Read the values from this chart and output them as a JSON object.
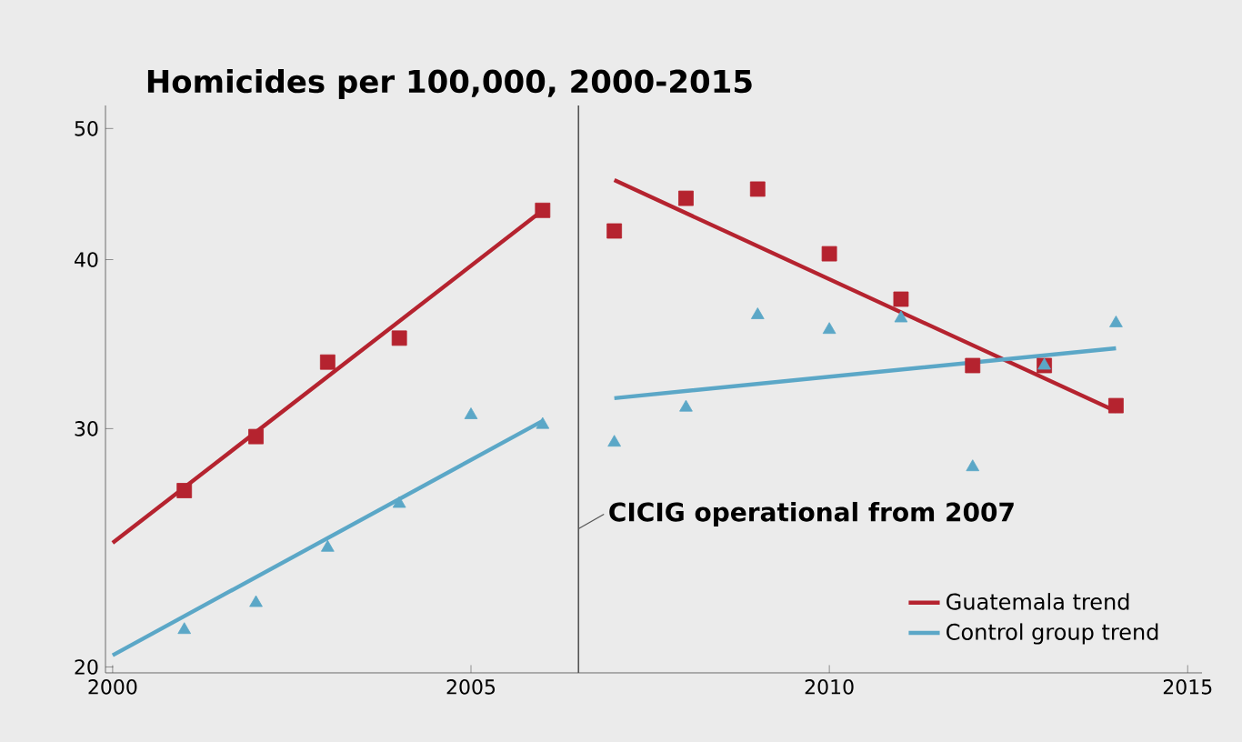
{
  "chart_data": {
    "type": "scatter",
    "title": "Homicides per 100,000, 2000-2015",
    "log": "y",
    "grid": false,
    "legend": "bottom right",
    "xlim": [
      1999.9,
      2015.2
    ],
    "ylim": [
      19.8,
      52
    ],
    "xticks": [
      2000,
      2005,
      2010,
      2015
    ],
    "yticks": [
      20,
      30,
      40,
      50
    ],
    "series": [
      {
        "type": "line",
        "name": "Guatemala trend",
        "color": "#b5232f",
        "x": [
          2000,
          2006,
          2006.5,
          2007,
          2014
        ],
        "values": [
          24.7,
          43.5,
          null,
          45.8,
          30.9
        ]
      },
      {
        "type": "line",
        "name": "Control group trend",
        "color": "#5ba7c7",
        "x": [
          2000,
          2006,
          2006.5,
          2007,
          2014
        ],
        "values": [
          20.4,
          30.4,
          null,
          31.6,
          34.4
        ]
      },
      {
        "marker": "square",
        "color": "#b5232f",
        "x": [
          2001,
          2002,
          2003,
          2004,
          2006,
          2007,
          2008,
          2009,
          2010,
          2011,
          2012,
          2013,
          2014
        ],
        "values": [
          27.0,
          29.6,
          33.6,
          35.0,
          43.5,
          42.0,
          44.4,
          45.1,
          40.4,
          37.4,
          33.4,
          33.4,
          31.2
        ]
      },
      {
        "marker": "triangle",
        "color": "#5ba7c7",
        "x": [
          2001,
          2002,
          2003,
          2004,
          2005,
          2006,
          2007,
          2008,
          2009,
          2010,
          2011,
          2012,
          2013,
          2014
        ],
        "values": [
          21.3,
          22.3,
          24.5,
          26.4,
          30.7,
          30.2,
          29.3,
          31.1,
          36.4,
          35.5,
          36.2,
          28.1,
          33.4,
          35.9
        ]
      }
    ],
    "ref_lines": [
      {
        "axis": "x",
        "value": 2006.5,
        "label": "CICIG operational from 2007",
        "color": "#555555"
      }
    ]
  }
}
